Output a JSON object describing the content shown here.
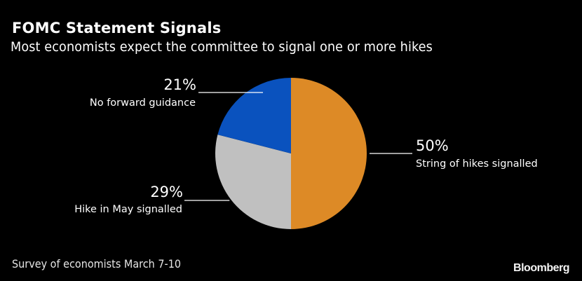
{
  "header": {
    "title": "FOMC Statement Signals",
    "subtitle": "Most economists expect the committee to signal one or more hikes"
  },
  "footer": {
    "source": "Survey of economists March 7-10",
    "brand": "Bloomberg"
  },
  "chart_data": {
    "type": "pie",
    "title": "FOMC Statement Signals",
    "subtitle": "Most economists expect the committee to signal one or more hikes",
    "start_angle": "12 o'clock",
    "direction": "clockwise",
    "slices": [
      {
        "label": "String of hikes signalled",
        "value": 50,
        "display": "50%",
        "color": "#dd8a26",
        "label_side": "right"
      },
      {
        "label": "Hike in May signalled",
        "value": 29,
        "display": "29%",
        "color": "#c0c0c0",
        "label_side": "left"
      },
      {
        "label": "No forward guidance",
        "value": 21,
        "display": "21%",
        "color": "#0a52be",
        "label_side": "left"
      }
    ],
    "legend": "none",
    "note": "Survey of economists March 7-10"
  }
}
